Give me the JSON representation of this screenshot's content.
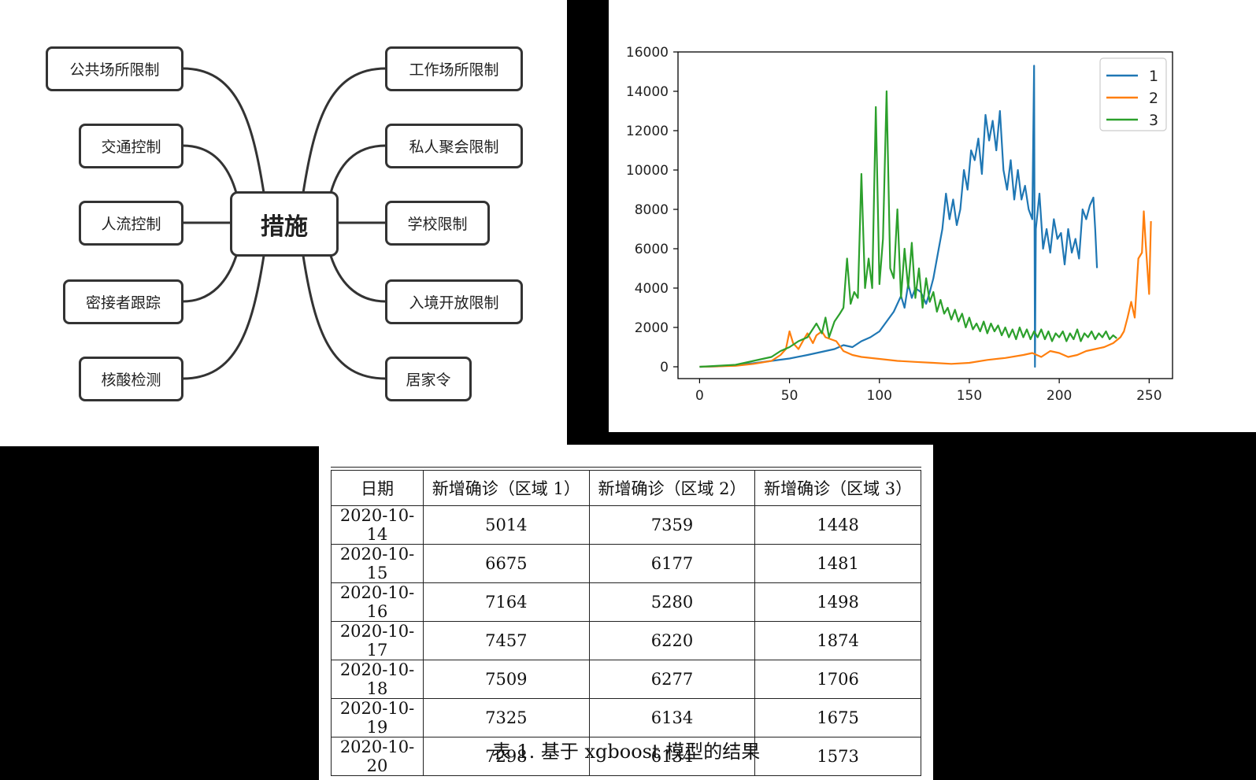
{
  "mindmap": {
    "center": "措施",
    "left_nodes": [
      "公共场所限制",
      "交通控制",
      "人流控制",
      "密接者跟踪",
      "核酸检测"
    ],
    "right_nodes": [
      "工作场所限制",
      "私人聚会限制",
      "学校限制",
      "入境开放限制",
      "居家令"
    ]
  },
  "chart_data": {
    "type": "line",
    "xlim": [
      -12,
      263
    ],
    "ylim": [
      -600,
      16000
    ],
    "xticks": [
      0,
      50,
      100,
      150,
      200,
      250
    ],
    "yticks": [
      0,
      2000,
      4000,
      6000,
      8000,
      10000,
      12000,
      14000,
      16000
    ],
    "legend_position": "top-right",
    "grid": false,
    "series": [
      {
        "name": "1",
        "color": "#1f77b4",
        "points": [
          [
            0,
            0
          ],
          [
            10,
            20
          ],
          [
            20,
            80
          ],
          [
            30,
            180
          ],
          [
            40,
            300
          ],
          [
            50,
            420
          ],
          [
            60,
            600
          ],
          [
            70,
            800
          ],
          [
            75,
            900
          ],
          [
            80,
            1100
          ],
          [
            85,
            1000
          ],
          [
            90,
            1300
          ],
          [
            95,
            1500
          ],
          [
            100,
            1800
          ],
          [
            104,
            2300
          ],
          [
            108,
            2800
          ],
          [
            112,
            3600
          ],
          [
            114,
            3000
          ],
          [
            116,
            4200
          ],
          [
            118,
            3500
          ],
          [
            120,
            4000
          ],
          [
            123,
            3800
          ],
          [
            126,
            3200
          ],
          [
            128,
            3800
          ],
          [
            130,
            4500
          ],
          [
            133,
            6000
          ],
          [
            135,
            7000
          ],
          [
            137,
            8800
          ],
          [
            139,
            7500
          ],
          [
            141,
            8500
          ],
          [
            143,
            7200
          ],
          [
            145,
            8000
          ],
          [
            147,
            10000
          ],
          [
            149,
            9000
          ],
          [
            151,
            11000
          ],
          [
            153,
            10500
          ],
          [
            155,
            11600
          ],
          [
            157,
            9800
          ],
          [
            159,
            12800
          ],
          [
            161,
            11500
          ],
          [
            163,
            12500
          ],
          [
            165,
            11000
          ],
          [
            167,
            13000
          ],
          [
            169,
            10000
          ],
          [
            171,
            9000
          ],
          [
            173,
            10500
          ],
          [
            175,
            8500
          ],
          [
            177,
            10000
          ],
          [
            179,
            8500
          ],
          [
            181,
            9200
          ],
          [
            183,
            8000
          ],
          [
            185,
            7500
          ],
          [
            186,
            15300
          ],
          [
            186.5,
            0
          ],
          [
            187,
            7000
          ],
          [
            189,
            8800
          ],
          [
            191,
            6000
          ],
          [
            193,
            7000
          ],
          [
            195,
            5800
          ],
          [
            197,
            7500
          ],
          [
            199,
            6500
          ],
          [
            201,
            6800
          ],
          [
            203,
            5200
          ],
          [
            205,
            7000
          ],
          [
            207,
            5800
          ],
          [
            209,
            6500
          ],
          [
            211,
            5500
          ],
          [
            213,
            8000
          ],
          [
            215,
            7500
          ],
          [
            217,
            8200
          ],
          [
            219,
            8600
          ],
          [
            220,
            7000
          ],
          [
            221,
            5014
          ]
        ]
      },
      {
        "name": "2",
        "color": "#ff7f0e",
        "points": [
          [
            0,
            0
          ],
          [
            20,
            50
          ],
          [
            30,
            150
          ],
          [
            40,
            300
          ],
          [
            45,
            600
          ],
          [
            48,
            900
          ],
          [
            50,
            1800
          ],
          [
            52,
            1200
          ],
          [
            55,
            900
          ],
          [
            58,
            1400
          ],
          [
            60,
            1700
          ],
          [
            63,
            1200
          ],
          [
            65,
            1600
          ],
          [
            68,
            1800
          ],
          [
            70,
            1500
          ],
          [
            73,
            1400
          ],
          [
            76,
            1300
          ],
          [
            80,
            800
          ],
          [
            85,
            600
          ],
          [
            90,
            500
          ],
          [
            100,
            400
          ],
          [
            110,
            300
          ],
          [
            120,
            250
          ],
          [
            130,
            200
          ],
          [
            140,
            150
          ],
          [
            150,
            200
          ],
          [
            160,
            350
          ],
          [
            170,
            450
          ],
          [
            180,
            600
          ],
          [
            185,
            700
          ],
          [
            190,
            500
          ],
          [
            195,
            800
          ],
          [
            200,
            700
          ],
          [
            205,
            500
          ],
          [
            210,
            600
          ],
          [
            215,
            800
          ],
          [
            220,
            900
          ],
          [
            225,
            1000
          ],
          [
            230,
            1200
          ],
          [
            234,
            1500
          ],
          [
            236,
            1800
          ],
          [
            238,
            2500
          ],
          [
            240,
            3300
          ],
          [
            242,
            2500
          ],
          [
            244,
            5500
          ],
          [
            246,
            5800
          ],
          [
            247,
            7900
          ],
          [
            248,
            6400
          ],
          [
            250,
            3700
          ],
          [
            251,
            7400
          ]
        ]
      },
      {
        "name": "3",
        "color": "#2ca02c",
        "points": [
          [
            0,
            0
          ],
          [
            20,
            100
          ],
          [
            30,
            300
          ],
          [
            40,
            500
          ],
          [
            45,
            800
          ],
          [
            50,
            1000
          ],
          [
            55,
            1300
          ],
          [
            60,
            1500
          ],
          [
            65,
            2200
          ],
          [
            68,
            1700
          ],
          [
            70,
            2500
          ],
          [
            72,
            1500
          ],
          [
            75,
            2300
          ],
          [
            78,
            2700
          ],
          [
            80,
            3000
          ],
          [
            82,
            5500
          ],
          [
            84,
            3200
          ],
          [
            86,
            3800
          ],
          [
            88,
            3500
          ],
          [
            90,
            9800
          ],
          [
            92,
            4000
          ],
          [
            94,
            5500
          ],
          [
            96,
            4000
          ],
          [
            98,
            13200
          ],
          [
            100,
            4200
          ],
          [
            102,
            6500
          ],
          [
            104,
            14000
          ],
          [
            106,
            5000
          ],
          [
            108,
            4500
          ],
          [
            110,
            8000
          ],
          [
            112,
            3500
          ],
          [
            114,
            6000
          ],
          [
            116,
            4000
          ],
          [
            118,
            6300
          ],
          [
            120,
            3500
          ],
          [
            122,
            5000
          ],
          [
            124,
            3000
          ],
          [
            126,
            4500
          ],
          [
            128,
            3300
          ],
          [
            130,
            3800
          ],
          [
            132,
            2800
          ],
          [
            134,
            3400
          ],
          [
            136,
            2700
          ],
          [
            138,
            3000
          ],
          [
            140,
            2400
          ],
          [
            142,
            2900
          ],
          [
            144,
            2300
          ],
          [
            146,
            2700
          ],
          [
            148,
            2000
          ],
          [
            150,
            2500
          ],
          [
            152,
            1900
          ],
          [
            154,
            2200
          ],
          [
            156,
            1800
          ],
          [
            158,
            2300
          ],
          [
            160,
            1700
          ],
          [
            162,
            2200
          ],
          [
            164,
            1800
          ],
          [
            166,
            2100
          ],
          [
            168,
            1600
          ],
          [
            170,
            2000
          ],
          [
            172,
            1500
          ],
          [
            174,
            1900
          ],
          [
            176,
            1400
          ],
          [
            178,
            2000
          ],
          [
            180,
            1500
          ],
          [
            182,
            1900
          ],
          [
            184,
            1400
          ],
          [
            186,
            1800
          ],
          [
            188,
            1500
          ],
          [
            190,
            1900
          ],
          [
            192,
            1400
          ],
          [
            194,
            1800
          ],
          [
            196,
            1300
          ],
          [
            198,
            1700
          ],
          [
            200,
            1500
          ],
          [
            202,
            1800
          ],
          [
            204,
            1300
          ],
          [
            206,
            1700
          ],
          [
            208,
            1400
          ],
          [
            210,
            1900
          ],
          [
            212,
            1300
          ],
          [
            214,
            1700
          ],
          [
            216,
            1500
          ],
          [
            218,
            1800
          ],
          [
            220,
            1400
          ],
          [
            222,
            1700
          ],
          [
            224,
            1500
          ],
          [
            226,
            1800
          ],
          [
            228,
            1400
          ],
          [
            230,
            1600
          ],
          [
            232,
            1448
          ]
        ]
      }
    ]
  },
  "table": {
    "headers": [
      "日期",
      "新增确诊（区域 1）",
      "新增确诊（区域 2）",
      "新增确诊（区域 3）"
    ],
    "rows": [
      [
        "2020-10-14",
        "5014",
        "7359",
        "1448"
      ],
      [
        "2020-10-15",
        "6675",
        "6177",
        "1481"
      ],
      [
        "2020-10-16",
        "7164",
        "5280",
        "1498"
      ],
      [
        "2020-10-17",
        "7457",
        "6220",
        "1874"
      ],
      [
        "2020-10-18",
        "7509",
        "6277",
        "1706"
      ],
      [
        "2020-10-19",
        "7325",
        "6134",
        "1675"
      ],
      [
        "2020-10-20",
        "7298",
        "6134",
        "1573"
      ]
    ],
    "caption": "表 1.  基于 xgboost 模型的结果"
  }
}
